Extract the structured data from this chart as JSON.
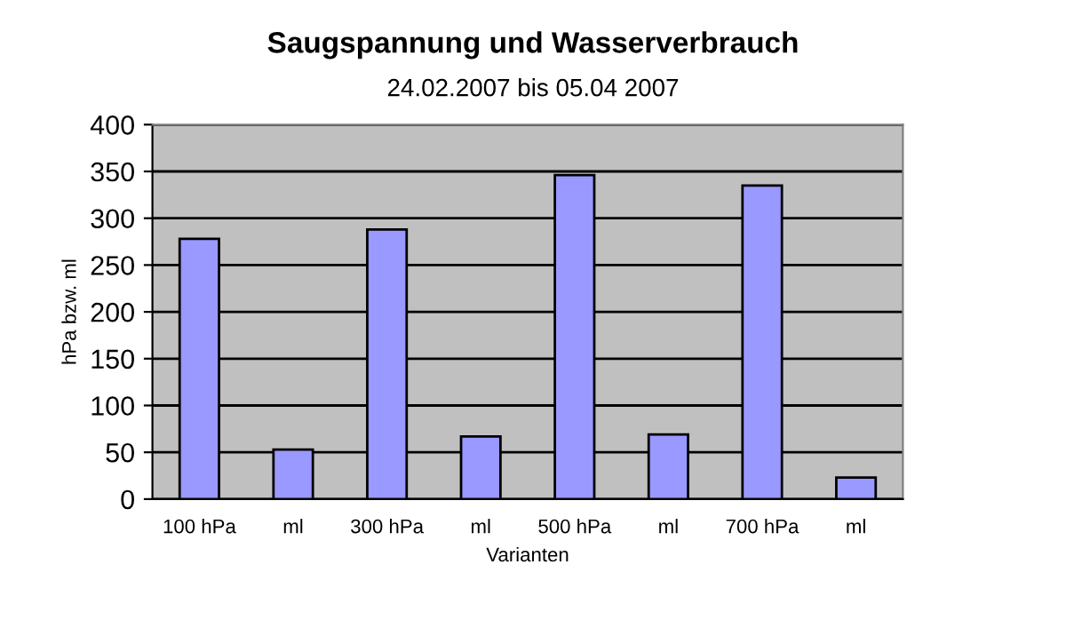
{
  "chart_data": {
    "type": "bar",
    "title": "Saugspannung und Wasserverbrauch",
    "subtitle": "24.02.2007 bis 05.04 2007",
    "xlabel": "Varianten",
    "ylabel": "hPa bzw. ml",
    "categories": [
      "100 hPa",
      "ml",
      "300 hPa",
      "ml",
      "500 hPa",
      "ml",
      "700 hPa",
      "ml"
    ],
    "values": [
      278,
      53,
      288,
      67,
      346,
      69,
      335,
      23
    ],
    "color": "#9999ff",
    "ylim": [
      0,
      400
    ],
    "yticks": [
      0,
      50,
      100,
      150,
      200,
      250,
      300,
      350,
      400
    ],
    "grid": "y",
    "legend": false
  }
}
